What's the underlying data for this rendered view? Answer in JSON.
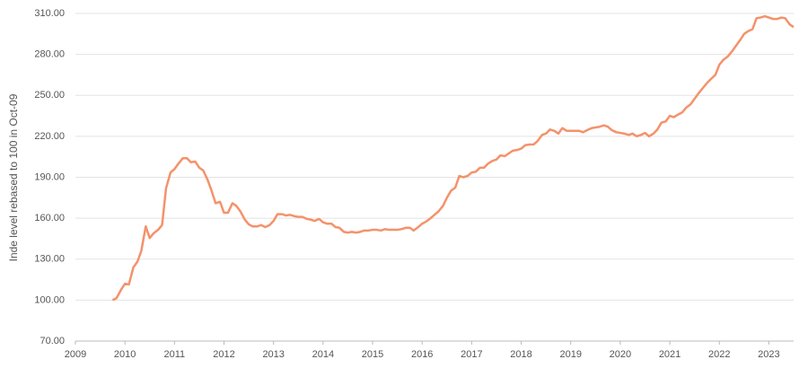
{
  "chart_data": {
    "type": "line",
    "y_label": "Inde level rebased to 100 in Oct-09",
    "xlim": [
      2009,
      2023.5
    ],
    "xticks": [
      2009,
      2010,
      2011,
      2012,
      2013,
      2014,
      2015,
      2016,
      2017,
      2018,
      2019,
      2020,
      2021,
      2022,
      2023
    ],
    "ylim": [
      70,
      310
    ],
    "yticks": [
      {
        "value": 70,
        "label": "70.00"
      },
      {
        "value": 100,
        "label": "100.00"
      },
      {
        "value": 130,
        "label": "130.00"
      },
      {
        "value": 160,
        "label": "160.00"
      },
      {
        "value": 190,
        "label": "190.00"
      },
      {
        "value": 220,
        "label": "220.00"
      },
      {
        "value": 250,
        "label": "250.00"
      },
      {
        "value": 280,
        "label": "280.00"
      },
      {
        "value": 310,
        "label": "310.00"
      }
    ],
    "grid": true,
    "x": [
      2009.75,
      2009.83,
      2009.92,
      2010,
      2010.08,
      2010.17,
      2010.25,
      2010.33,
      2010.42,
      2010.5,
      2010.58,
      2010.67,
      2010.75,
      2010.83,
      2010.92,
      2011,
      2011.08,
      2011.17,
      2011.25,
      2011.33,
      2011.42,
      2011.5,
      2011.58,
      2011.67,
      2011.75,
      2011.83,
      2011.92,
      2012,
      2012.08,
      2012.17,
      2012.25,
      2012.33,
      2012.42,
      2012.5,
      2012.58,
      2012.67,
      2012.75,
      2012.83,
      2012.92,
      2013,
      2013.08,
      2013.17,
      2013.25,
      2013.33,
      2013.42,
      2013.5,
      2013.58,
      2013.67,
      2013.75,
      2013.83,
      2013.92,
      2014,
      2014.08,
      2014.17,
      2014.25,
      2014.33,
      2014.42,
      2014.5,
      2014.58,
      2014.67,
      2014.75,
      2014.83,
      2014.92,
      2015,
      2015.08,
      2015.17,
      2015.25,
      2015.33,
      2015.42,
      2015.5,
      2015.58,
      2015.67,
      2015.75,
      2015.83,
      2015.92,
      2016,
      2016.08,
      2016.17,
      2016.25,
      2016.33,
      2016.42,
      2016.5,
      2016.58,
      2016.67,
      2016.75,
      2016.83,
      2016.92,
      2017,
      2017.08,
      2017.17,
      2017.25,
      2017.33,
      2017.42,
      2017.5,
      2017.58,
      2017.67,
      2017.75,
      2017.83,
      2017.92,
      2018,
      2018.08,
      2018.17,
      2018.25,
      2018.33,
      2018.42,
      2018.5,
      2018.58,
      2018.67,
      2018.75,
      2018.83,
      2018.92,
      2019,
      2019.08,
      2019.17,
      2019.25,
      2019.33,
      2019.42,
      2019.5,
      2019.58,
      2019.67,
      2019.75,
      2019.83,
      2019.92,
      2020,
      2020.08,
      2020.17,
      2020.25,
      2020.33,
      2020.42,
      2020.5,
      2020.58,
      2020.67,
      2020.75,
      2020.83,
      2020.92,
      2021,
      2021.08,
      2021.17,
      2021.25,
      2021.33,
      2021.42,
      2021.5,
      2021.58,
      2021.67,
      2021.75,
      2021.83,
      2021.92,
      2022,
      2022.08,
      2022.17,
      2022.25,
      2022.33,
      2022.42,
      2022.5,
      2022.58,
      2022.67,
      2022.75,
      2022.83,
      2022.92,
      2023,
      2023.08,
      2023.17,
      2023.25,
      2023.33,
      2023.42,
      2023.5
    ],
    "series": [
      {
        "color": "#f4926b",
        "values": [
          100,
          101.5,
          107.5,
          112,
          111.5,
          124,
          128,
          136,
          154,
          145.5,
          149,
          151.5,
          155,
          182,
          193.5,
          196,
          200,
          204,
          204,
          201,
          201.5,
          197,
          195,
          188,
          180,
          171,
          172,
          164,
          164,
          171,
          169,
          165,
          159,
          155.5,
          154,
          154,
          155,
          153.5,
          155,
          158,
          163,
          163,
          162,
          162.5,
          161.5,
          161,
          161,
          159.5,
          159,
          158,
          159.5,
          157,
          156,
          156,
          153.5,
          153,
          150,
          149.5,
          150,
          149.5,
          150,
          151,
          151,
          151.5,
          151.5,
          151,
          152,
          151.5,
          151.5,
          151.5,
          152,
          153,
          153,
          151,
          153.5,
          156,
          157.5,
          160,
          162.5,
          165,
          169,
          175,
          180,
          182.5,
          191,
          190,
          191,
          193.5,
          194,
          197,
          197,
          200,
          202,
          203,
          206,
          205.5,
          207.5,
          209.5,
          210,
          211,
          213.5,
          214,
          214,
          216.5,
          221,
          222,
          225,
          224,
          222,
          226,
          224,
          224,
          224,
          224,
          223,
          224.5,
          226,
          226.5,
          227,
          228,
          227,
          224.5,
          223,
          222.5,
          222,
          221,
          222,
          220,
          221,
          222.5,
          220,
          222,
          225,
          230,
          231,
          235,
          234,
          236,
          237.5,
          241,
          243.5,
          247.5,
          251.5,
          255.5,
          259,
          262,
          265,
          272.5,
          276,
          278.5,
          282,
          286,
          290.5,
          295,
          297,
          298.5,
          306.5,
          307,
          308,
          307,
          306,
          306,
          307,
          306.5,
          302,
          300
        ]
      }
    ]
  }
}
